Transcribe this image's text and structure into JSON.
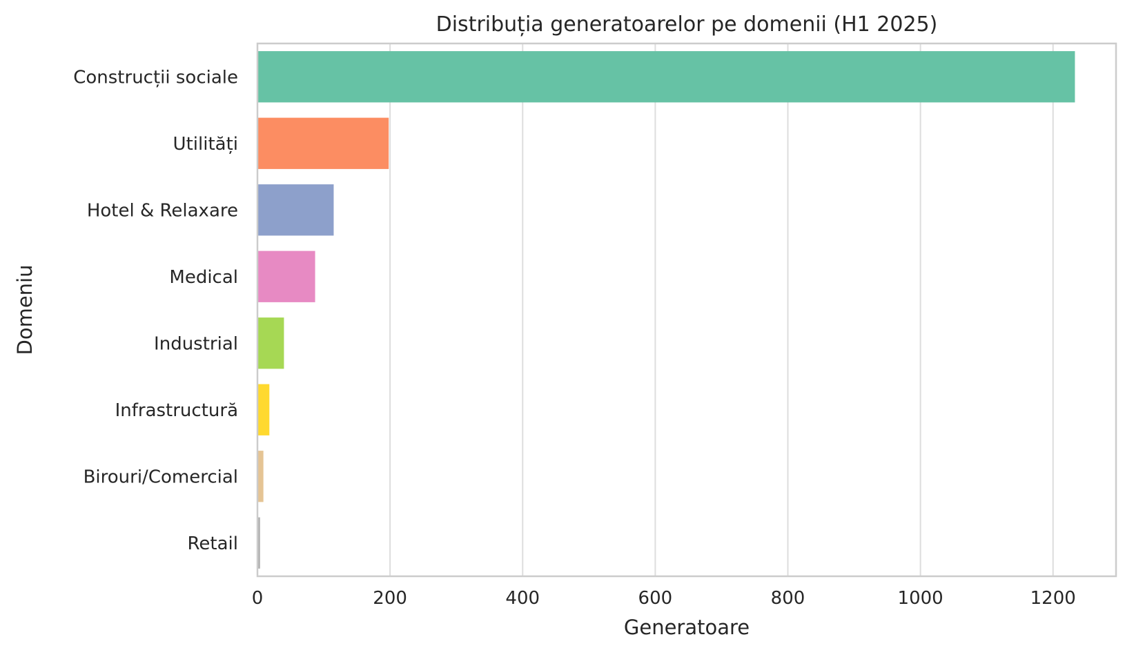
{
  "chart_data": {
    "type": "bar",
    "orientation": "horizontal",
    "title": "Distribuția generatoarelor pe domenii (H1 2025)",
    "xlabel": "Generatoare",
    "ylabel": "Domeniu",
    "xlim": [
      0,
      1295
    ],
    "xticks": [
      0,
      200,
      400,
      600,
      800,
      1000,
      1200
    ],
    "grid": "vertical",
    "categories": [
      "Construcții sociale",
      "Utilități",
      "Hotel & Relaxare",
      "Medical",
      "Industrial",
      "Infrastructură",
      "Birouri/Comercial",
      "Retail"
    ],
    "values": [
      1233,
      198,
      115,
      87,
      40,
      18,
      9,
      4
    ],
    "colors": [
      "#66c2a5",
      "#fc8d62",
      "#8da0cb",
      "#e78ac3",
      "#a6d854",
      "#ffd92f",
      "#e5c494",
      "#b3b3b3"
    ]
  }
}
